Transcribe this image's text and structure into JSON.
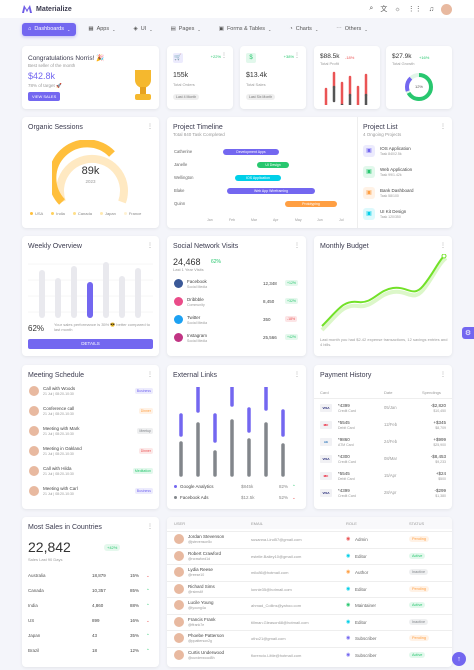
{
  "brand": "Materialize",
  "nav": [
    {
      "label": "Dashboards",
      "icon": "home-icon"
    },
    {
      "label": "Apps",
      "icon": "apps-icon"
    },
    {
      "label": "UI",
      "icon": "layers-icon"
    },
    {
      "label": "Pages",
      "icon": "page-icon"
    },
    {
      "label": "Forms & Tables",
      "icon": "form-icon"
    },
    {
      "label": "Charts",
      "icon": "chart-icon"
    },
    {
      "label": "Others",
      "icon": "dots-icon"
    }
  ],
  "congrats": {
    "title": "Congratulations Norris! 🎉",
    "sub": "Best seller of the month",
    "value": "$42.8k",
    "target": "78% of target 🚀",
    "button": "VIEW SALES"
  },
  "stats": [
    {
      "value": "155k",
      "label": "Total Orders",
      "change": "+22%",
      "chip": "Last 4 Month",
      "color": "#7367f0",
      "icon": "cart-icon"
    },
    {
      "value": "$13.4k",
      "label": "Total Sales",
      "change": "+38%",
      "chip": "Last Six Month",
      "color": "#28c76f",
      "icon": "dollar-icon"
    },
    {
      "value": "$88.5k",
      "label": "Total Profit",
      "change": "-18%",
      "color": "#ea5455"
    },
    {
      "value": "$27.9k",
      "label": "Total Growth",
      "change": "+16%",
      "center": "12%",
      "color": "#28c76f"
    }
  ],
  "organic": {
    "title": "Organic Sessions",
    "value": "89k",
    "year": "2023",
    "legend": [
      "USA",
      "India",
      "Canada",
      "Japan",
      "France"
    ]
  },
  "timeline": {
    "title": "Project Timeline",
    "sub": "Total 840 Task Completed",
    "people": [
      "Catherine",
      "Janelle",
      "Wellington",
      "Blake",
      "Quinn"
    ],
    "bars": [
      {
        "label": "Development Apps",
        "color": "#7367f0"
      },
      {
        "label": "UI Design",
        "color": "#28c76f"
      },
      {
        "label": "IOS Application",
        "color": "#00cfe8"
      },
      {
        "label": "Web App Wireframing",
        "color": "#7367f0"
      },
      {
        "label": "Prototyping",
        "color": "#ff9f43"
      }
    ],
    "months": [
      "Jan",
      "Feb",
      "Mar",
      "Apr",
      "May",
      "Jun",
      "Jul"
    ]
  },
  "projects": {
    "title": "Project List",
    "sub": "4 Ongoing Projects",
    "items": [
      {
        "name": "IOS Application",
        "task": "Task 840/2.5k",
        "color": "#7367f0"
      },
      {
        "name": "Web Application",
        "task": "Task 99/1.42k",
        "color": "#28c76f"
      },
      {
        "name": "Bank Dashboard",
        "task": "Task 58/100",
        "color": "#ff9f43"
      },
      {
        "name": "UI Kit Design",
        "task": "Task 120/350",
        "color": "#00cfe8"
      }
    ]
  },
  "weekly": {
    "title": "Weekly Overview",
    "pct": "62%",
    "text": "Your sales performance is 35% 😎 better compared to last month",
    "button": "DETAILS"
  },
  "social": {
    "title": "Social Network Visits",
    "value": "24,468",
    "change": "62%",
    "sub": "Last 1 Year Visits",
    "items": [
      {
        "name": "Facebook",
        "type": "Social Media",
        "value": "12,348",
        "change": "+12%",
        "up": true,
        "color": "#3b5998"
      },
      {
        "name": "Dribbble",
        "type": "Community",
        "value": "8,450",
        "change": "+32%",
        "up": true,
        "color": "#ea4c89"
      },
      {
        "name": "Twitter",
        "type": "Social Media",
        "value": "350",
        "change": "-18%",
        "up": false,
        "color": "#1da1f2"
      },
      {
        "name": "Instagram",
        "type": "Social Media",
        "value": "25,566",
        "change": "+42%",
        "up": true,
        "color": "#c13584"
      }
    ]
  },
  "budget": {
    "title": "Monthly Budget",
    "text": "Last month you had $2.42 expense transactions, 12 savings entries and 4 bills."
  },
  "schedule": {
    "title": "Meeting Schedule",
    "items": [
      {
        "title": "Call with Woods",
        "time": "21 Jul | 08:20-10:30",
        "tag": "Business",
        "tagcolor": "#7367f0"
      },
      {
        "title": "Conference call",
        "time": "21 Jul | 08:20-10:30",
        "tag": "Dinner",
        "tagcolor": "#ff9f43"
      },
      {
        "title": "Meeting with Mark",
        "time": "21 Jul | 08:20-10:30",
        "tag": "Meetup",
        "tagcolor": "#82868b"
      },
      {
        "title": "Meeting in Oakland",
        "time": "21 Jul | 08:20-10:30",
        "tag": "Dinner",
        "tagcolor": "#ea5455"
      },
      {
        "title": "Call with Hilda",
        "time": "21 Jul | 08:20-10:30",
        "tag": "Meditation",
        "tagcolor": "#28c76f"
      },
      {
        "title": "Meeting with Carl",
        "time": "21 Jul | 08:20-10:30",
        "tag": "Business",
        "tagcolor": "#7367f0"
      }
    ]
  },
  "links": {
    "title": "External Links",
    "rows": [
      {
        "name": "Google Analytics",
        "value": "$845k",
        "change": "82%",
        "up": true,
        "color": "#7367f0"
      },
      {
        "name": "Facebook Ads",
        "value": "$12.5k",
        "change": "52%",
        "up": false,
        "color": "#82868b"
      }
    ]
  },
  "payments": {
    "title": "Payment History",
    "headers": [
      "Card",
      "Date",
      "Spendings"
    ],
    "rows": [
      {
        "card": "*4399",
        "type": "Credit Card",
        "date": "05/Jan",
        "amount": "-$2,820",
        "bal": "$10,450",
        "brand": "VISA"
      },
      {
        "card": "*5545",
        "type": "Debit Card",
        "date": "12/Feb",
        "amount": "+$345",
        "bal": "$8,709",
        "brand": "MC"
      },
      {
        "card": "*9860",
        "type": "ATM Card",
        "date": "24/Feb",
        "amount": "+$999",
        "bal": "$25,900",
        "brand": "AE"
      },
      {
        "card": "*4300",
        "type": "Credit Card",
        "date": "08/Mar",
        "amount": "-$8,453",
        "bal": "$9,233",
        "brand": "VISA"
      },
      {
        "card": "*5545",
        "type": "Debit Card",
        "date": "15/Apr",
        "amount": "+$24",
        "bal": "$500",
        "brand": "MC"
      },
      {
        "card": "*4399",
        "type": "Credit Card",
        "date": "28/Apr",
        "amount": "-$299",
        "bal": "$1,380",
        "brand": "VISA"
      }
    ]
  },
  "sales": {
    "title": "Most Sales in Countries",
    "value": "22,842",
    "change": "+42%",
    "sub": "Sales Last 90 Days",
    "rows": [
      {
        "country": "Australia",
        "sales": "18,879",
        "pct": "15%",
        "up": false
      },
      {
        "country": "Canada",
        "sales": "10,357",
        "pct": "85%",
        "up": true
      },
      {
        "country": "India",
        "sales": "4,860",
        "pct": "88%",
        "up": true
      },
      {
        "country": "US",
        "sales": "899",
        "pct": "16%",
        "up": false
      },
      {
        "country": "Japan",
        "sales": "43",
        "pct": "35%",
        "up": true
      },
      {
        "country": "Brazil",
        "sales": "18",
        "pct": "12%",
        "up": true
      }
    ]
  },
  "users": {
    "headers": [
      "USER",
      "EMAIL",
      "ROLE",
      "STATUS"
    ],
    "rows": [
      {
        "name": "Jordan Stevenson",
        "handle": "@jstevenson5c",
        "email": "susanna.Lind57@gmail.com",
        "role": "Admin",
        "rolecolor": "#ea5455",
        "status": "Pending",
        "statuscolor": "#ff9f43"
      },
      {
        "name": "Robert Crawford",
        "handle": "@rcrawford1d",
        "email": "estelle.Bailey10@gmail.com",
        "role": "Editor",
        "rolecolor": "#00cfe8",
        "status": "Active",
        "statuscolor": "#28c76f"
      },
      {
        "name": "Lydia Reese",
        "handle": "@reese10",
        "email": "milo86@hotmail.com",
        "role": "Author",
        "rolecolor": "#ff9f43",
        "status": "Inactive",
        "statuscolor": "#82868b"
      },
      {
        "name": "Richard Sims",
        "handle": "@rsims6f",
        "email": "lonnie35@hotmail.com",
        "role": "Editor",
        "rolecolor": "#00cfe8",
        "status": "Pending",
        "statuscolor": "#ff9f43"
      },
      {
        "name": "Lucile Young",
        "handle": "@lyoung4a",
        "email": "ahmad_Collins@yahoo.com",
        "role": "Maintainer",
        "rolecolor": "#28c76f",
        "status": "Active",
        "statuscolor": "#28c76f"
      },
      {
        "name": "Francis Frank",
        "handle": "@ffrank7e",
        "email": "tillman.Gleason68@hotmail.com",
        "role": "Editor",
        "rolecolor": "#00cfe8",
        "status": "Inactive",
        "statuscolor": "#82868b"
      },
      {
        "name": "Phoebe Patterson",
        "handle": "@ppatterson2g",
        "email": "otho21@gmail.com",
        "role": "Subscriber",
        "rolecolor": "#7367f0",
        "status": "Pending",
        "statuscolor": "#ff9f43"
      },
      {
        "name": "Curtis Underwood",
        "handle": "@cunderwood8h",
        "email": "florencio.Little@hotmail.com",
        "role": "Subscriber",
        "rolecolor": "#7367f0",
        "status": "Active",
        "statuscolor": "#28c76f"
      }
    ]
  }
}
